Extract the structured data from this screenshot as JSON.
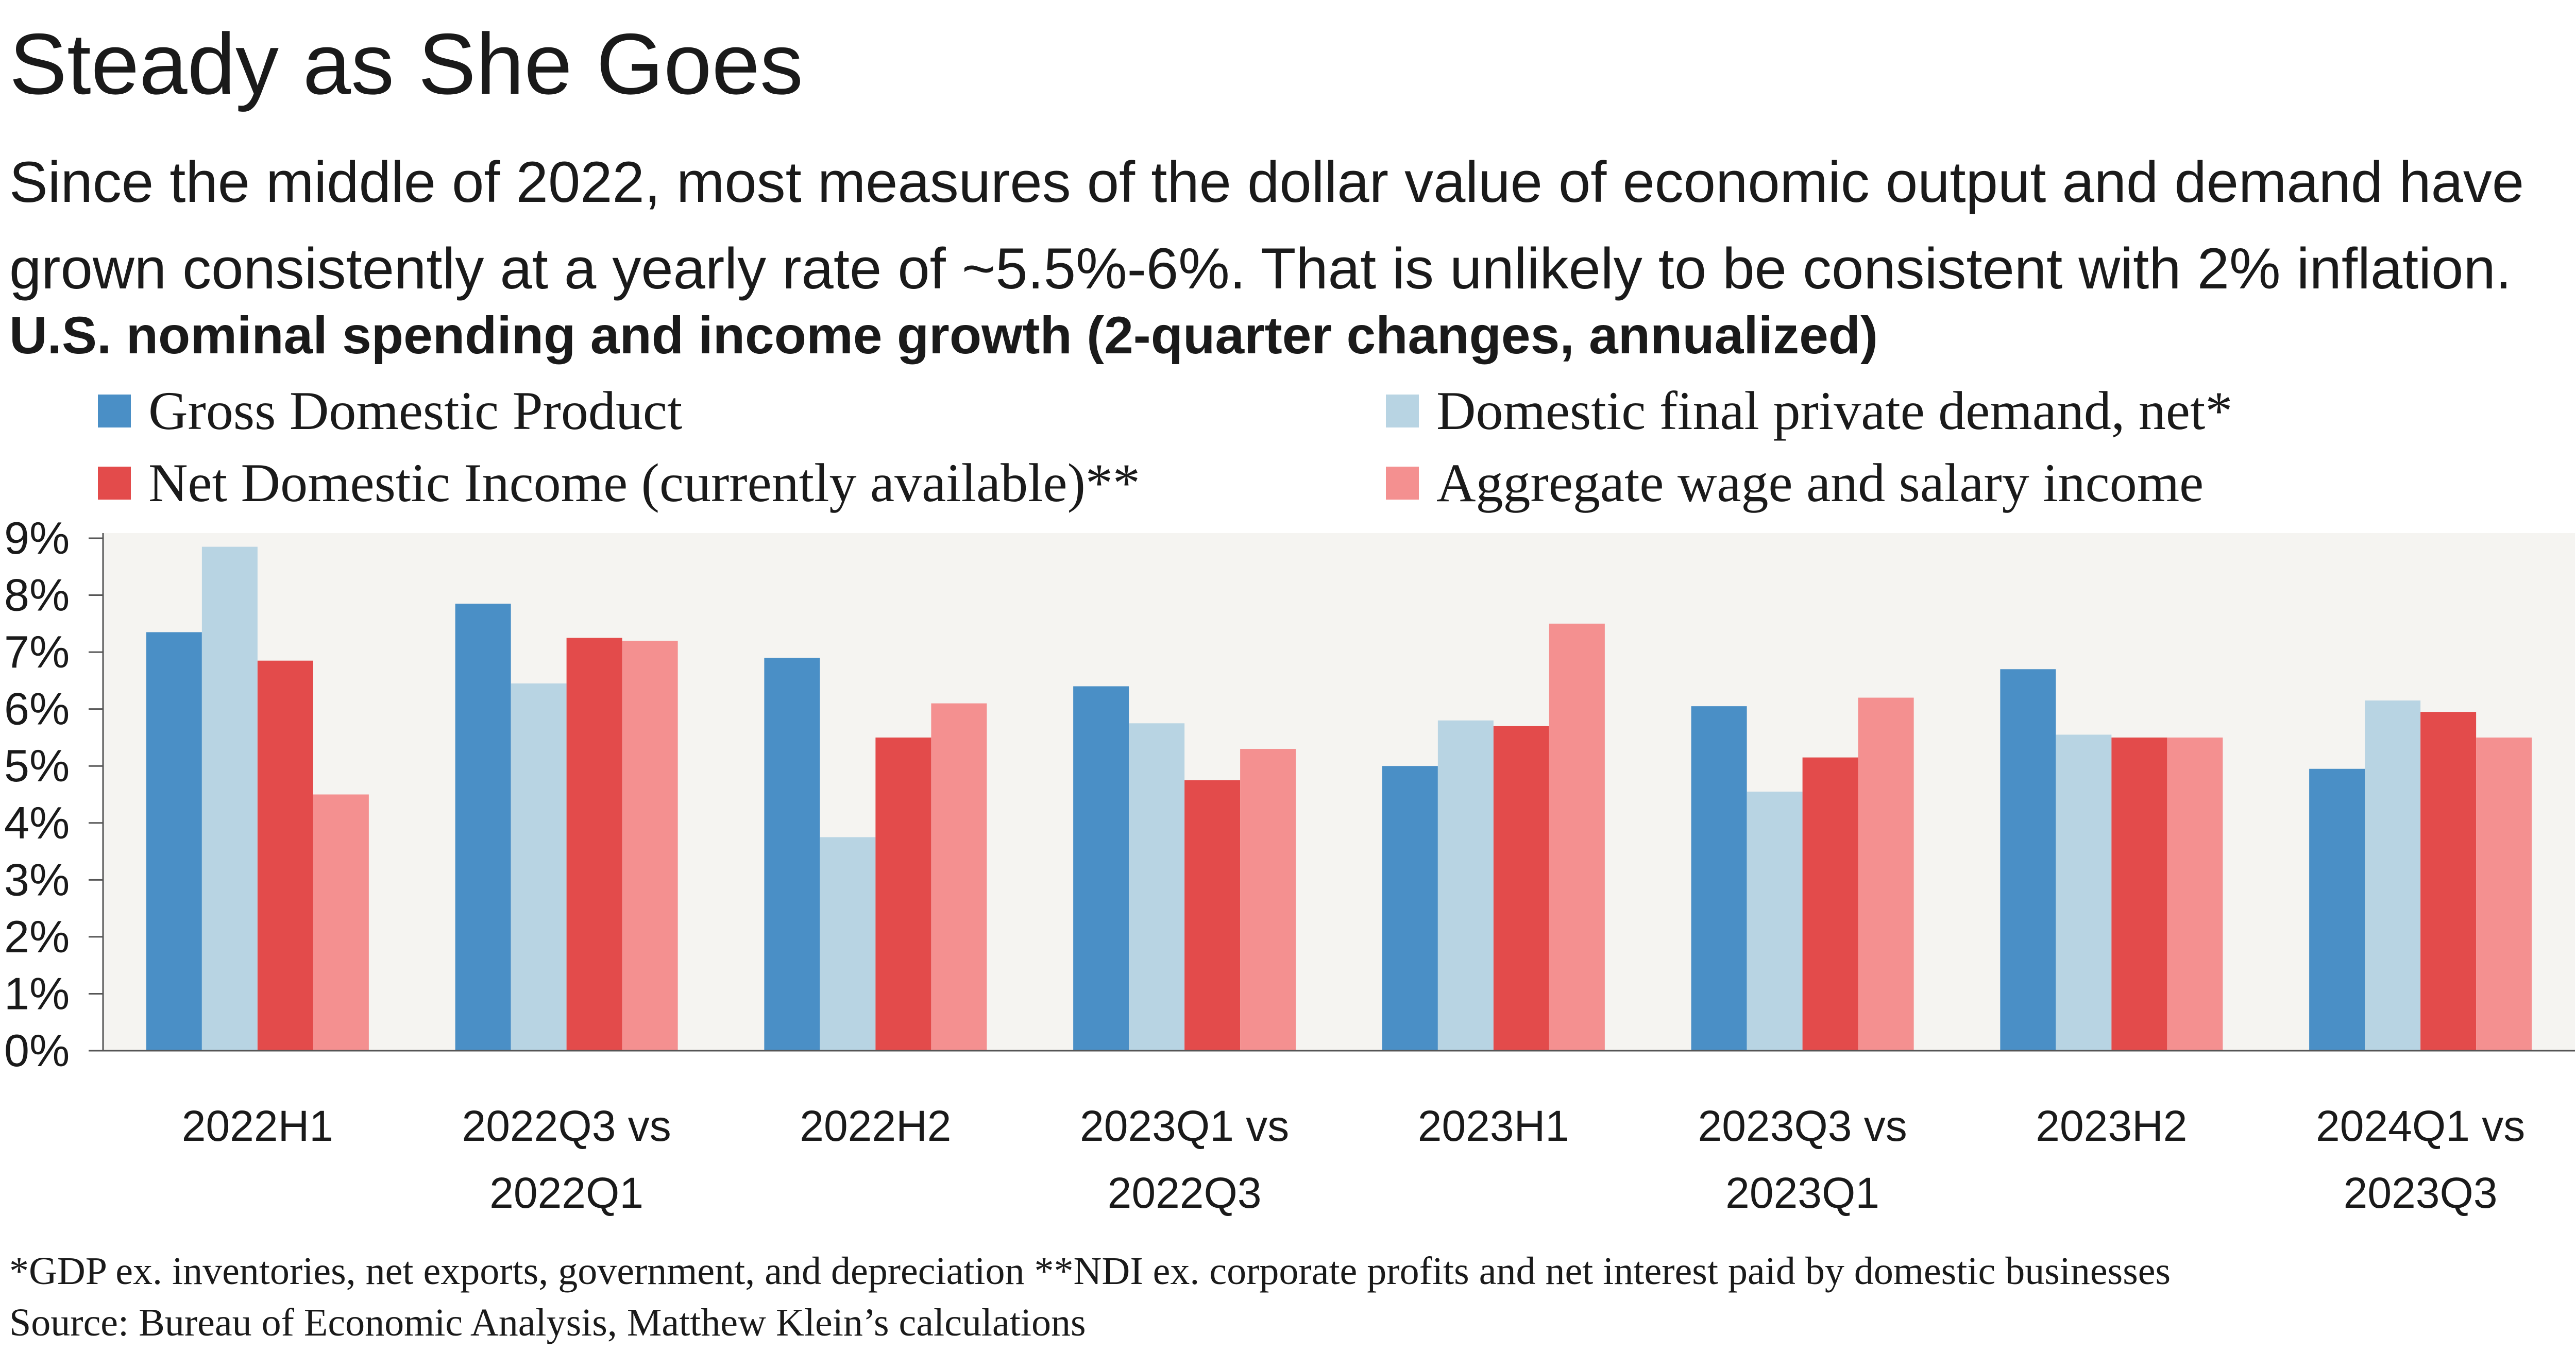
{
  "header": {
    "title": "Steady as She Goes",
    "subtitle": "Since the middle of 2022, most measures of the dollar value of economic output and demand have grown consistently at a yearly rate of ~5.5%-6%. That is unlikely to be consistent with 2% inflation.",
    "chart_heading": "U.S. nominal spending and income growth (2-quarter changes, annualized)"
  },
  "footer": {
    "note": "*GDP ex. inventories, net exports, government, and depreciation    **NDI ex. corporate profits and net interest paid by domestic businesses",
    "source": "Source: Bureau of Economic Analysis, Matthew Klein’s calculations"
  },
  "chart_data": {
    "type": "bar",
    "categories": [
      [
        "2022H1"
      ],
      [
        "2022Q3 vs",
        "2022Q1"
      ],
      [
        "2022H2"
      ],
      [
        "2023Q1 vs",
        "2022Q3"
      ],
      [
        "2023H1"
      ],
      [
        "2023Q3 vs",
        "2023Q1"
      ],
      [
        "2023H2"
      ],
      [
        "2024Q1 vs",
        "2023Q3"
      ]
    ],
    "series": [
      {
        "name": "Gross Domestic Product",
        "color": "#4a8fc6",
        "values": [
          7.35,
          7.85,
          6.9,
          6.4,
          5.0,
          6.05,
          6.7,
          4.95
        ]
      },
      {
        "name": "Domestic final private demand, net*",
        "color": "#b8d4e3",
        "values": [
          8.85,
          6.45,
          3.75,
          5.75,
          5.8,
          4.55,
          5.55,
          6.15
        ]
      },
      {
        "name": "Net Domestic Income (currently available)**",
        "color": "#e34b4b",
        "values": [
          6.85,
          7.25,
          5.5,
          4.75,
          5.7,
          5.15,
          5.5,
          5.95
        ]
      },
      {
        "name": "Aggregate wage and salary income",
        "color": "#f49090",
        "values": [
          4.5,
          7.2,
          6.1,
          5.3,
          7.5,
          6.2,
          5.5,
          5.5
        ]
      }
    ],
    "yticks": [
      "0%",
      "1%",
      "2%",
      "3%",
      "4%",
      "5%",
      "6%",
      "7%",
      "8%",
      "9%"
    ],
    "ylim": [
      0,
      9
    ],
    "xlabel": "",
    "ylabel": "",
    "legend_position": "top",
    "grid": false,
    "plot_background": "#f5f4f1"
  }
}
